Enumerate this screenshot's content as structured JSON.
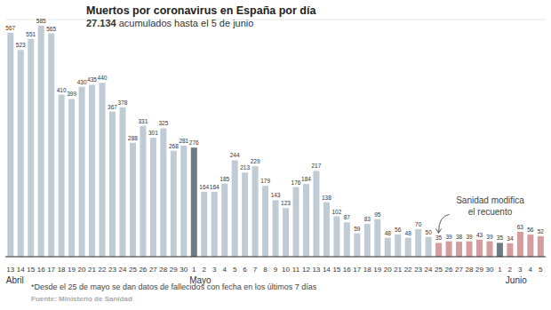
{
  "chart_data": {
    "type": "bar",
    "title": "Muertos por coronavirus en España por día",
    "subtitle": "27.134 acumulados hasta el 5 de junio",
    "categories": [
      "13",
      "14",
      "15",
      "16",
      "17",
      "18",
      "19",
      "20",
      "21",
      "22",
      "23",
      "24",
      "25",
      "26",
      "27",
      "28",
      "29",
      "30",
      "1",
      "2",
      "3",
      "4",
      "5",
      "6",
      "7",
      "8",
      "9",
      "10",
      "11",
      "12",
      "13",
      "14",
      "15",
      "16",
      "17",
      "18",
      "19",
      "20",
      "21",
      "22",
      "23",
      "24",
      "25",
      "26",
      "27",
      "28",
      "29",
      "30",
      "1",
      "2",
      "3",
      "4",
      "5"
    ],
    "values": [
      567,
      523,
      551,
      585,
      565,
      410,
      399,
      430,
      435,
      440,
      367,
      378,
      288,
      331,
      301,
      325,
      268,
      281,
      276,
      164,
      164,
      185,
      244,
      213,
      229,
      179,
      143,
      123,
      176,
      184,
      217,
      138,
      102,
      87,
      59,
      83,
      95,
      48,
      56,
      48,
      70,
      50,
      35,
      39,
      38,
      39,
      43,
      39,
      35,
      34,
      63,
      56,
      52
    ],
    "colors": [
      "#bfcbd5",
      "#bfcbd5",
      "#bfcbd5",
      "#bfcbd5",
      "#bfcbd5",
      "#bfcbd5",
      "#bfcbd5",
      "#bfcbd5",
      "#bfcbd5",
      "#bfcbd5",
      "#bfcbd5",
      "#bfcbd5",
      "#bfcbd5",
      "#bfcbd5",
      "#bfcbd5",
      "#bfcbd5",
      "#bfcbd5",
      "#bfcbd5",
      "#6e7b85",
      "#bfcbd5",
      "#bfcbd5",
      "#bfcbd5",
      "#bfcbd5",
      "#bfcbd5",
      "#bfcbd5",
      "#bfcbd5",
      "#bfcbd5",
      "#bfcbd5",
      "#bfcbd5",
      "#bfcbd5",
      "#bfcbd5",
      "#bfcbd5",
      "#bfcbd5",
      "#bfcbd5",
      "#bfcbd5",
      "#bfcbd5",
      "#bfcbd5",
      "#bfcbd5",
      "#bfcbd5",
      "#bfcbd5",
      "#bfcbd5",
      "#bfcbd5",
      "#d49c9c",
      "#d49c9c",
      "#d49c9c",
      "#d49c9c",
      "#d49c9c",
      "#d49c9c",
      "#6e7b85",
      "#d49c9c",
      "#d49c9c",
      "#d49c9c",
      "#d49c9c"
    ],
    "ylim": [
      0,
      600
    ],
    "yticks": [
      0,
      100,
      200,
      300,
      400,
      500,
      600
    ],
    "grid": true,
    "data_labels": true,
    "tick_labels": "x",
    "month_labels": [
      {
        "text": "Abril",
        "index": 0
      },
      {
        "text": "Mayo",
        "index": 18
      },
      {
        "text": "Junio",
        "index": 49
      }
    ],
    "annotation": {
      "lines": [
        "Sanidad modifica",
        "el recuento"
      ],
      "index": 42
    },
    "footnote": "*Desde el 25 de mayo se dan datos de fallecidos con fecha en los últimos 7 días",
    "source": "Fuente: Ministerio de Sanidad"
  }
}
